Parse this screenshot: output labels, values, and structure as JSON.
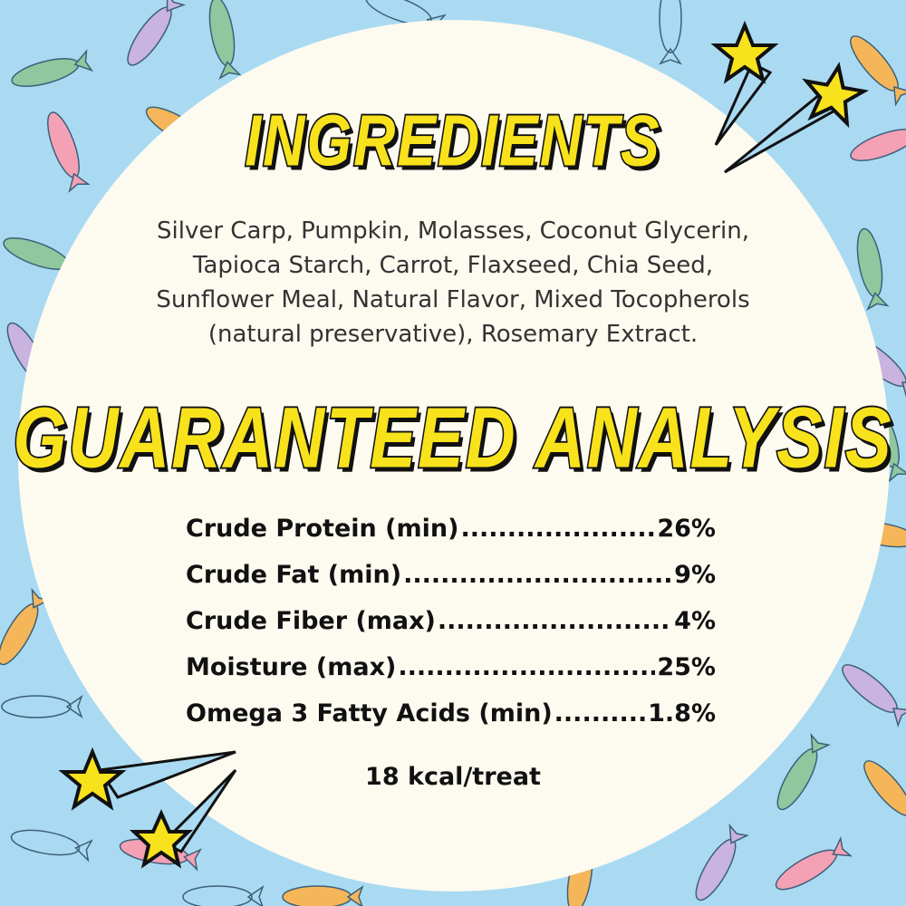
{
  "headings": {
    "ingredients": "Ingredients",
    "analysis": "Guaranteed Analysis"
  },
  "ingredients_lines": [
    "Silver Carp, Pumpkin, Molasses, Coconut Glycerin,",
    "Tapioca Starch, Carrot, Flaxseed, Chia Seed,",
    "Sunflower Meal, Natural Flavor, Mixed Tocopherols",
    "(natural preservative), Rosemary Extract."
  ],
  "analysis": [
    {
      "label": "Crude Protein (min)",
      "value": "26%"
    },
    {
      "label": "Crude Fat (min)",
      "value": "9%"
    },
    {
      "label": "Crude Fiber (max)",
      "value": "4%"
    },
    {
      "label": "Moisture (max)",
      "value": "25%"
    },
    {
      "label": "Omega 3 Fatty Acids (min)",
      "value": "1.8%"
    }
  ],
  "calories": "18 kcal/treat",
  "colors": {
    "background": "#a9daf2",
    "circle": "#fdfaf0",
    "heading": "#f8e21c",
    "fish": [
      "#8fc79f",
      "#c9b3df",
      "#f4a0b5",
      "#f5b65a"
    ]
  }
}
